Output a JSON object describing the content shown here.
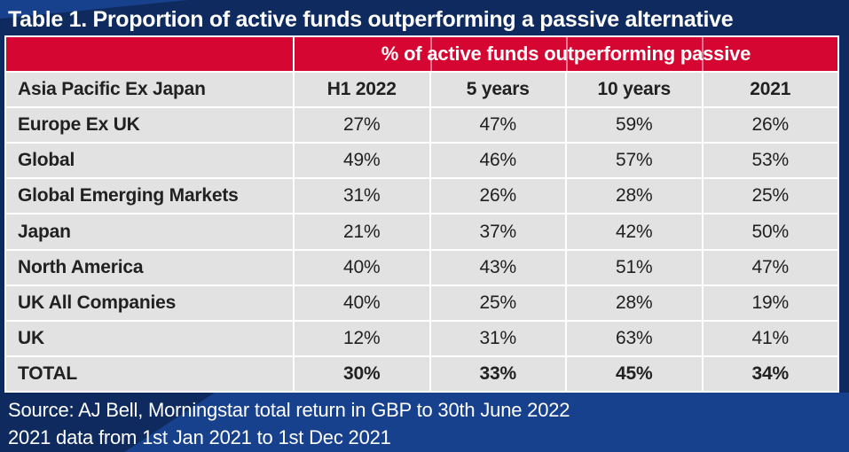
{
  "title": "Table 1. Proportion of active funds outperforming a passive alternative",
  "table": {
    "span_header": "% of active funds outperforming passive",
    "header_row": {
      "label": "Asia Pacific Ex Japan",
      "columns": [
        "H1 2022",
        "5 years",
        "10 years",
        "2021"
      ]
    },
    "rows": [
      {
        "label": "Europe Ex UK",
        "values": [
          "27%",
          "47%",
          "59%",
          "26%"
        ],
        "bold": false
      },
      {
        "label": "Global",
        "values": [
          "49%",
          "46%",
          "57%",
          "53%"
        ],
        "bold": false
      },
      {
        "label": "Global Emerging Markets",
        "values": [
          "31%",
          "26%",
          "28%",
          "25%"
        ],
        "bold": false
      },
      {
        "label": "Japan",
        "values": [
          "21%",
          "37%",
          "42%",
          "50%"
        ],
        "bold": false
      },
      {
        "label": "North America",
        "values": [
          "40%",
          "43%",
          "51%",
          "47%"
        ],
        "bold": false
      },
      {
        "label": "UK All Companies",
        "values": [
          "40%",
          "25%",
          "28%",
          "19%"
        ],
        "bold": false
      },
      {
        "label": "UK",
        "values": [
          "12%",
          "31%",
          "63%",
          "41%"
        ],
        "bold": false
      },
      {
        "label": "TOTAL",
        "values": [
          "30%",
          "33%",
          "45%",
          "34%"
        ],
        "bold": true
      }
    ]
  },
  "source": {
    "line1": "Source: AJ Bell, Morningstar total return in GBP to 30th June 2022",
    "line2": "2021 data from 1st Jan 2021 to 1st Dec 2021"
  },
  "colors": {
    "navy": "#0f2a5e",
    "royal": "#17418d",
    "red": "#d50632",
    "row_gray": "#e2e2e2",
    "grid_white": "#ffffff",
    "text_dark": "#212121",
    "text_white": "#ffffff"
  },
  "chart_data": {
    "type": "table",
    "title": "Table 1. Proportion of active funds outperforming a passive alternative",
    "group_header": "% of active funds outperforming passive",
    "first_column_header": "Asia Pacific Ex Japan",
    "columns": [
      "H1 2022",
      "5 years",
      "10 years",
      "2021"
    ],
    "rows": [
      [
        "Europe Ex UK",
        27,
        47,
        59,
        26
      ],
      [
        "Global",
        49,
        46,
        57,
        53
      ],
      [
        "Global Emerging Markets",
        31,
        26,
        28,
        25
      ],
      [
        "Japan",
        21,
        37,
        42,
        50
      ],
      [
        "North America",
        40,
        43,
        51,
        47
      ],
      [
        "UK All Companies",
        40,
        25,
        28,
        19
      ],
      [
        "UK",
        12,
        31,
        63,
        41
      ],
      [
        "TOTAL",
        30,
        33,
        45,
        34
      ]
    ],
    "units": "%",
    "source": [
      "Source: AJ Bell, Morningstar total return in GBP to 30th June 2022",
      "2021 data from 1st Jan 2021 to 1st Dec 2021"
    ]
  }
}
